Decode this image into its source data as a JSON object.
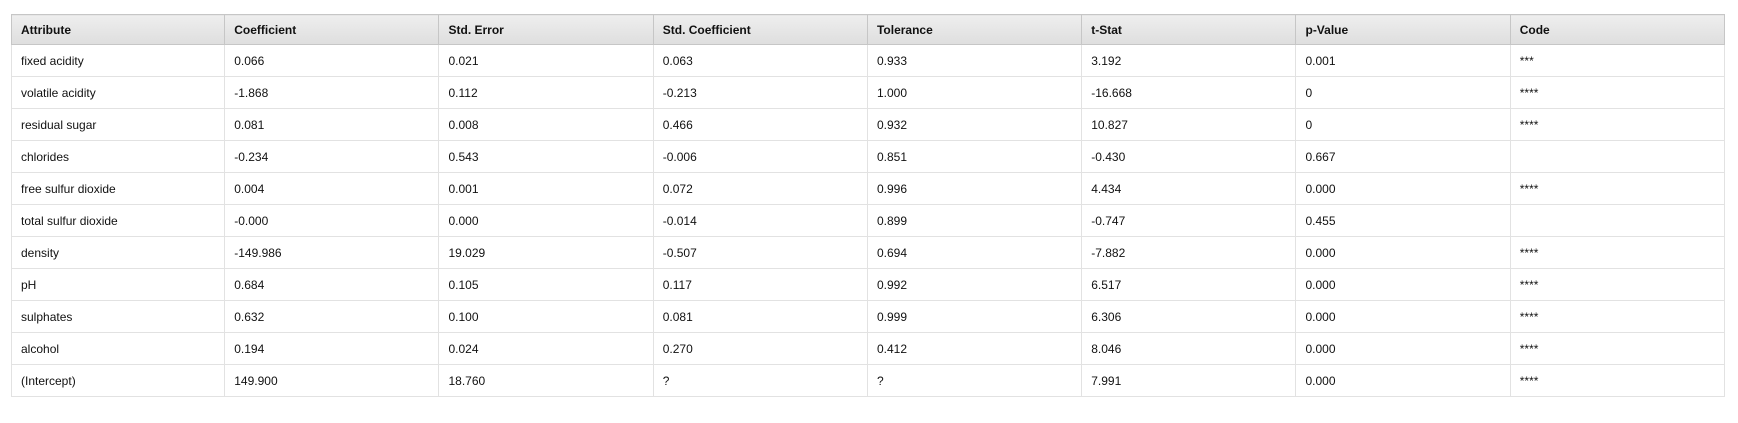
{
  "table": {
    "columns": [
      "Attribute",
      "Coefficient",
      "Std. Error",
      "Std. Coefficient",
      "Tolerance",
      "t-Stat",
      "p-Value",
      "Code"
    ],
    "rows": [
      [
        "fixed acidity",
        "0.066",
        "0.021",
        "0.063",
        "0.933",
        "3.192",
        "0.001",
        "***"
      ],
      [
        "volatile acidity",
        "-1.868",
        "0.112",
        "-0.213",
        "1.000",
        "-16.668",
        "0",
        "****"
      ],
      [
        "residual sugar",
        "0.081",
        "0.008",
        "0.466",
        "0.932",
        "10.827",
        "0",
        "****"
      ],
      [
        "chlorides",
        "-0.234",
        "0.543",
        "-0.006",
        "0.851",
        "-0.430",
        "0.667",
        ""
      ],
      [
        "free sulfur dioxide",
        "0.004",
        "0.001",
        "0.072",
        "0.996",
        "4.434",
        "0.000",
        "****"
      ],
      [
        "total sulfur dioxide",
        "-0.000",
        "0.000",
        "-0.014",
        "0.899",
        "-0.747",
        "0.455",
        ""
      ],
      [
        "density",
        "-149.986",
        "19.029",
        "-0.507",
        "0.694",
        "-7.882",
        "0.000",
        "****"
      ],
      [
        "pH",
        "0.684",
        "0.105",
        "0.117",
        "0.992",
        "6.517",
        "0.000",
        "****"
      ],
      [
        "sulphates",
        "0.632",
        "0.100",
        "0.081",
        "0.999",
        "6.306",
        "0.000",
        "****"
      ],
      [
        "alcohol",
        "0.194",
        "0.024",
        "0.270",
        "0.412",
        "8.046",
        "0.000",
        "****"
      ],
      [
        "(Intercept)",
        "149.900",
        "18.760",
        "?",
        "?",
        "7.991",
        "0.000",
        "****"
      ]
    ]
  }
}
